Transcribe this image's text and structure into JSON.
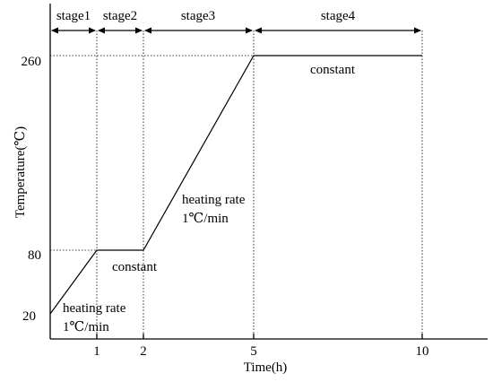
{
  "chart_data": {
    "type": "line",
    "xlabel": "Time(h)",
    "ylabel": "Temperature(℃)",
    "x_ticks": [
      {
        "value": 1,
        "label": "1"
      },
      {
        "value": 2,
        "label": "2"
      },
      {
        "value": 5,
        "label": "5"
      },
      {
        "value": 10,
        "label": "10"
      }
    ],
    "y_ticks": [
      {
        "value": 20,
        "label": "20"
      },
      {
        "value": 80,
        "label": "80"
      },
      {
        "value": 260,
        "label": "260"
      }
    ],
    "series": [
      {
        "points": [
          {
            "x": 0,
            "y": 20
          },
          {
            "x": 1,
            "y": 80
          },
          {
            "x": 2,
            "y": 80
          },
          {
            "x": 5,
            "y": 260
          },
          {
            "x": 10,
            "y": 260
          }
        ]
      }
    ],
    "stages": [
      {
        "label": "stage1",
        "from": 0,
        "to": 1
      },
      {
        "label": "stage2",
        "from": 1,
        "to": 2
      },
      {
        "label": "stage3",
        "from": 2,
        "to": 5
      },
      {
        "label": "stage4",
        "from": 5,
        "to": 10
      }
    ],
    "annotations": [
      {
        "lines": [
          "heating rate",
          "1℃/min"
        ],
        "near_stage": "stage1"
      },
      {
        "lines": [
          "constant"
        ],
        "near_stage": "stage2"
      },
      {
        "lines": [
          "heating rate",
          "1℃/min"
        ],
        "near_stage": "stage3"
      },
      {
        "lines": [
          "constant"
        ],
        "near_stage": "stage4"
      }
    ],
    "grid": false,
    "legend": "none"
  }
}
